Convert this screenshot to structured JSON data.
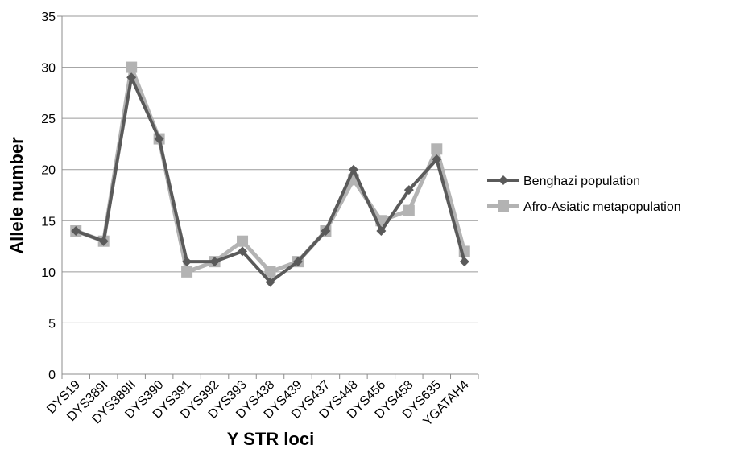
{
  "chart_data": {
    "type": "line",
    "xlabel": "Y STR loci",
    "ylabel": "Allele number",
    "categories": [
      "DYS19",
      "DYS389I",
      "DYS389II",
      "DYS390",
      "DYS391",
      "DYS392",
      "DYS393",
      "DYS438",
      "DYS439",
      "DYS437",
      "DYS448",
      "DYS456",
      "DYS458",
      "DYS635",
      "YGATAH4"
    ],
    "ylim": [
      0,
      35
    ],
    "yticks": [
      "0",
      "5",
      "10",
      "15",
      "20",
      "25",
      "30",
      "35"
    ],
    "grid": "horizontal",
    "legend_position": "right",
    "series": [
      {
        "name": "Benghazi population",
        "marker": "diamond",
        "color": "#5a5a5a",
        "values": [
          14,
          13,
          29,
          23,
          11,
          11,
          12,
          9,
          11,
          14,
          20,
          14,
          18,
          21,
          11
        ]
      },
      {
        "name": "Afro-Asiatic metapopulation",
        "marker": "square",
        "color": "#b3b3b3",
        "values": [
          14,
          13,
          30,
          23,
          10,
          11,
          13,
          10,
          11,
          14,
          19,
          15,
          16,
          22,
          12
        ]
      }
    ]
  }
}
